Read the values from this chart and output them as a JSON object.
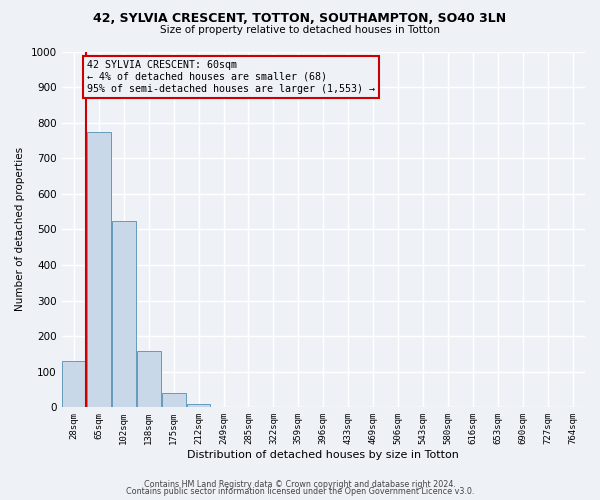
{
  "title": "42, SYLVIA CRESCENT, TOTTON, SOUTHAMPTON, SO40 3LN",
  "subtitle": "Size of property relative to detached houses in Totton",
  "xlabel": "Distribution of detached houses by size in Totton",
  "ylabel": "Number of detached properties",
  "bar_labels": [
    "28sqm",
    "65sqm",
    "102sqm",
    "138sqm",
    "175sqm",
    "212sqm",
    "249sqm",
    "285sqm",
    "322sqm",
    "359sqm",
    "396sqm",
    "433sqm",
    "469sqm",
    "506sqm",
    "543sqm",
    "580sqm",
    "616sqm",
    "653sqm",
    "690sqm",
    "727sqm",
    "764sqm"
  ],
  "bar_values": [
    130,
    775,
    525,
    157,
    40,
    10,
    0,
    0,
    0,
    0,
    0,
    0,
    0,
    0,
    0,
    0,
    0,
    0,
    0,
    0,
    0
  ],
  "bar_color": "#c8d8e8",
  "bar_edge_color": "#6699bb",
  "ylim": [
    0,
    1000
  ],
  "yticks": [
    0,
    100,
    200,
    300,
    400,
    500,
    600,
    700,
    800,
    900,
    1000
  ],
  "marker_color": "#cc0000",
  "annotation_title": "42 SYLVIA CRESCENT: 60sqm",
  "annotation_line1": "← 4% of detached houses are smaller (68)",
  "annotation_line2": "95% of semi-detached houses are larger (1,553) →",
  "annotation_box_color": "#cc0000",
  "footer_line1": "Contains HM Land Registry data © Crown copyright and database right 2024.",
  "footer_line2": "Contains public sector information licensed under the Open Government Licence v3.0.",
  "background_color": "#eef2f7",
  "grid_color": "#ffffff"
}
